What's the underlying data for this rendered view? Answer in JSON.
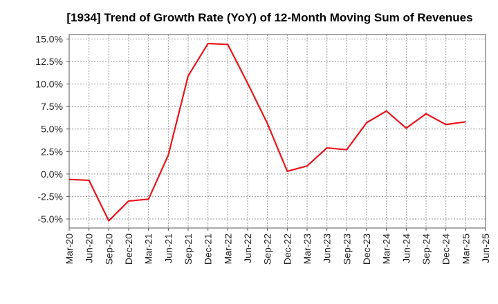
{
  "chart_data": {
    "type": "line",
    "title": "[1934]  Trend of Growth Rate (YoY) of 12-Month Moving Sum of Revenues",
    "xlabel": "",
    "ylabel": "",
    "x_tick_labels": [
      "Mar-20",
      "Jun-20",
      "Sep-20",
      "Dec-20",
      "Mar-21",
      "Jun-21",
      "Sep-21",
      "Dec-21",
      "Mar-22",
      "Jun-22",
      "Sep-22",
      "Dec-22",
      "Mar-23",
      "Jun-23",
      "Sep-23",
      "Dec-23",
      "Mar-24",
      "Jun-24",
      "Sep-24",
      "Dec-24",
      "Mar-25",
      "Jun-25"
    ],
    "y_tick_labels": [
      "15.0%",
      "12.5%",
      "10.0%",
      "7.5%",
      "5.0%",
      "2.5%",
      "0.0%",
      "-2.5%",
      "-5.0%"
    ],
    "y_ticks": [
      15.0,
      12.5,
      10.0,
      7.5,
      5.0,
      2.5,
      0.0,
      -2.5,
      -5.0
    ],
    "ylim": [
      -6.0,
      15.5
    ],
    "grid": true,
    "series": [
      {
        "color": "#e8141b",
        "x": [
          "Mar-20",
          "Jun-20",
          "Sep-20",
          "Dec-20",
          "Mar-21",
          "Jun-21",
          "Sep-21",
          "Dec-21",
          "Mar-22",
          "Jun-22",
          "Sep-22",
          "Dec-22",
          "Mar-23",
          "Jun-23",
          "Sep-23",
          "Dec-23",
          "Mar-24",
          "Jun-24",
          "Sep-24",
          "Dec-24",
          "Mar-25"
        ],
        "values": [
          -0.6,
          -0.7,
          -5.2,
          -3.0,
          -2.8,
          2.1,
          10.9,
          14.5,
          14.4,
          10.1,
          5.6,
          0.3,
          0.9,
          2.9,
          2.7,
          5.7,
          7.0,
          5.1,
          6.7,
          5.5,
          5.8
        ]
      }
    ]
  }
}
